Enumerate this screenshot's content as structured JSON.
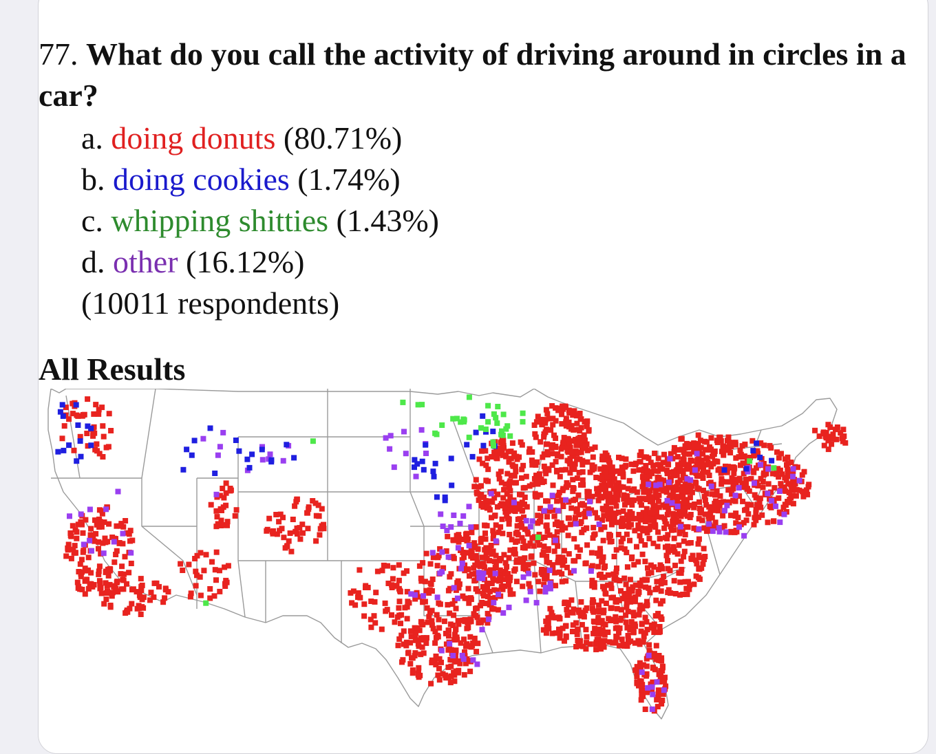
{
  "question": {
    "number": "77.",
    "text": "What do you call the activity of driving around in circles in a car?"
  },
  "answers": [
    {
      "letter": "a.",
      "label": "doing donuts",
      "percent": "(80.71%)",
      "color": "#e02020"
    },
    {
      "letter": "b.",
      "label": "doing cookies",
      "percent": "(1.74%)",
      "color": "#1a1acc"
    },
    {
      "letter": "c.",
      "label": "whipping shitties",
      "percent": "(1.43%)",
      "color": "#2e8b2e"
    },
    {
      "letter": "d.",
      "label": "other",
      "percent": "(16.12%)",
      "color": "#7a2fb0"
    }
  ],
  "respondents": "(10011 respondents)",
  "section_title": "All Results",
  "map": {
    "point_colors": {
      "doing donuts": "#e8231f",
      "doing cookies": "#1f1fe0",
      "whipping shitties": "#4ee84a",
      "other": "#9a3ff0"
    },
    "border_color": "#9a9a9a",
    "answer_shares": {
      "doing donuts": 80.71,
      "doing cookies": 1.74,
      "whipping shitties": 1.43,
      "other": 16.12
    }
  }
}
